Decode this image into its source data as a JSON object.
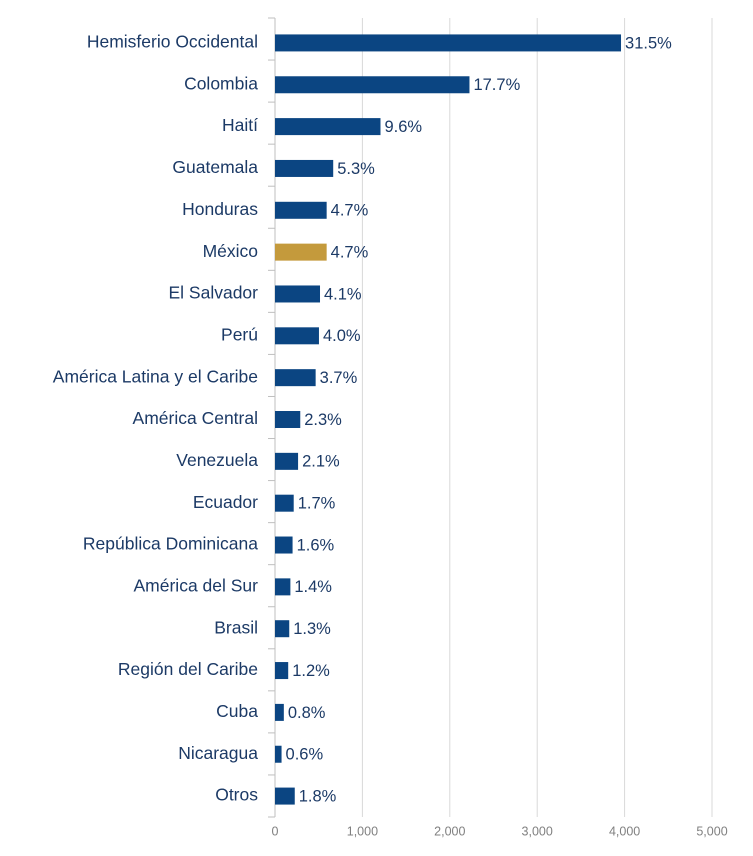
{
  "chart_data": {
    "type": "barh",
    "categories": [
      "Hemisferio Occidental",
      "Colombia",
      "Haití",
      "Guatemala",
      "Honduras",
      "México",
      "El Salvador",
      "Perú",
      "América Latina y el Caribe",
      "América Central",
      "Venezuela",
      "Ecuador",
      "República Dominicana",
      "América del Sur",
      "Brasil",
      "Región del Caribe",
      "Cuba",
      "Nicaragua",
      "Otros"
    ],
    "values": [
      3959,
      2225,
      1207,
      666,
      591,
      591,
      515,
      503,
      465,
      289,
      264,
      214,
      201,
      176,
      163,
      151,
      101,
      75,
      226
    ],
    "value_labels": [
      "31.5%",
      "17.7%",
      "9.6%",
      "5.3%",
      "4.7%",
      "4.7%",
      "4.1%",
      "4.0%",
      "3.7%",
      "2.3%",
      "2.1%",
      "1.7%",
      "1.6%",
      "1.4%",
      "1.3%",
      "1.2%",
      "0.8%",
      "0.6%",
      "1.8%"
    ],
    "colors": [
      "#0b4582",
      "#0b4582",
      "#0b4582",
      "#0b4582",
      "#0b4582",
      "#c49a3c",
      "#0b4582",
      "#0b4582",
      "#0b4582",
      "#0b4582",
      "#0b4582",
      "#0b4582",
      "#0b4582",
      "#0b4582",
      "#0b4582",
      "#0b4582",
      "#0b4582",
      "#0b4582",
      "#0b4582"
    ],
    "xlim": [
      0,
      5000
    ],
    "xticks": [
      0,
      {
        "value": 1000,
        "label": "1,000"
      },
      {
        "value": 2000,
        "label": "2,000"
      },
      {
        "value": 3000,
        "label": "3,000"
      },
      {
        "value": 4000,
        "label": "4,000"
      },
      {
        "value": 5000,
        "label": "5,000"
      }
    ],
    "grid": true
  }
}
